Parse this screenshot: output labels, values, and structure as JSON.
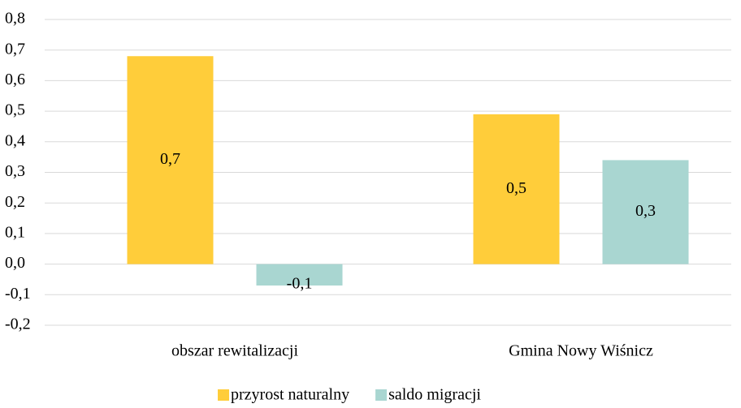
{
  "chart_data": {
    "type": "bar",
    "categories": [
      "obszar rewitalizacji",
      "Gmina Nowy Wiśnicz"
    ],
    "series": [
      {
        "name": "przyrost naturalny",
        "color": "#ffcd3a",
        "values": [
          0.68,
          0.49
        ],
        "value_labels": [
          "0,7",
          "0,5"
        ]
      },
      {
        "name": "saldo migracji",
        "color": "#a9d6d1",
        "values": [
          -0.07,
          0.34
        ],
        "value_labels": [
          "-0,1",
          "0,3"
        ]
      }
    ],
    "ylim": [
      -0.2,
      0.8
    ],
    "yticks": [
      {
        "value": -0.2,
        "label": "-0,2"
      },
      {
        "value": -0.1,
        "label": "-0,1"
      },
      {
        "value": 0,
        "label": "0,0"
      },
      {
        "value": 0.1,
        "label": "0,1"
      },
      {
        "value": 0.2,
        "label": "0,2"
      },
      {
        "value": 0.3,
        "label": "0,3"
      },
      {
        "value": 0.4,
        "label": "0,4"
      },
      {
        "value": 0.5,
        "label": "0,5"
      },
      {
        "value": 0.6,
        "label": "0,6"
      },
      {
        "value": 0.7,
        "label": "0,7"
      },
      {
        "value": 0.8,
        "label": "0,8"
      }
    ],
    "grid": true,
    "legend": "bottom"
  }
}
